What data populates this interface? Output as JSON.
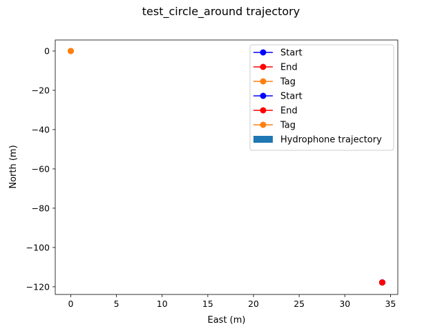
{
  "chart_data": {
    "type": "scatter",
    "title": "test_circle_around trajectory",
    "xlabel": "East (m)",
    "ylabel": "North (m)",
    "xlim": [
      -1.7,
      35.8
    ],
    "ylim": [
      -123.9,
      5.6
    ],
    "xticks": [
      0,
      5,
      10,
      15,
      20,
      25,
      30,
      35
    ],
    "yticks": [
      0,
      -20,
      -40,
      -60,
      -80,
      -100,
      -120
    ],
    "grid": false,
    "legend_position": "top-right",
    "series": [
      {
        "name": "Start",
        "color": "#0000ff",
        "marker": "circle-line",
        "points": [
          {
            "x": 34.1,
            "y": -117.8
          }
        ]
      },
      {
        "name": "End",
        "color": "#ff0000",
        "marker": "circle-line",
        "points": [
          {
            "x": 34.1,
            "y": -117.8
          }
        ]
      },
      {
        "name": "Tag",
        "color": "#ff7f0e",
        "marker": "circle-line",
        "points": [
          {
            "x": 0,
            "y": 0
          }
        ]
      },
      {
        "name": "Start",
        "color": "#0000ff",
        "marker": "circle-line",
        "points": [
          {
            "x": 34.1,
            "y": -117.8
          }
        ]
      },
      {
        "name": "End",
        "color": "#ff0000",
        "marker": "circle-line",
        "points": [
          {
            "x": 34.1,
            "y": -117.8
          }
        ]
      },
      {
        "name": "Tag",
        "color": "#ff7f0e",
        "marker": "circle-line",
        "points": [
          {
            "x": 0,
            "y": 0
          }
        ]
      },
      {
        "name": "Hydrophone trajectory",
        "color": "#1f77b4",
        "marker": "patch",
        "points": []
      }
    ]
  }
}
